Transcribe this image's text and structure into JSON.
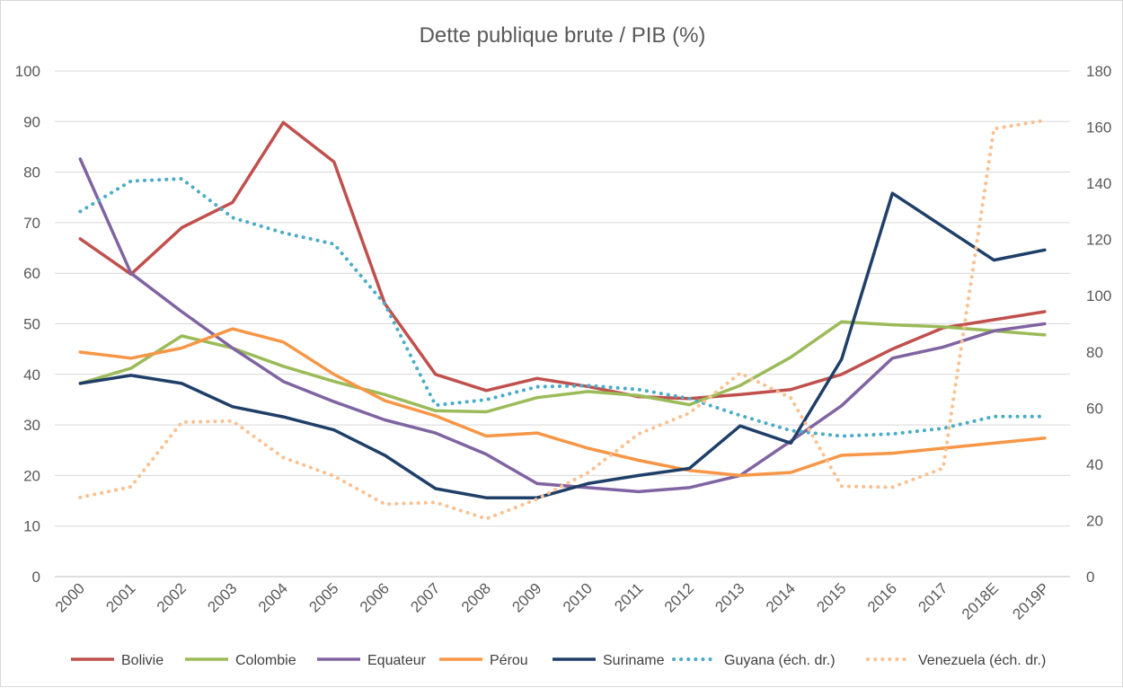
{
  "chart_data": {
    "type": "line",
    "title": "Dette publique brute / PIB (%)",
    "categories": [
      "2000",
      "2001",
      "2002",
      "2003",
      "2004",
      "2005",
      "2006",
      "2007",
      "2008",
      "2009",
      "2010",
      "2011",
      "2012",
      "2013",
      "2014",
      "2015",
      "2016",
      "2017",
      "2018E",
      "2019P"
    ],
    "y_left": {
      "min": 0,
      "max": 100,
      "step": 10,
      "ticks": [
        "0",
        "10",
        "20",
        "30",
        "40",
        "50",
        "60",
        "70",
        "80",
        "90",
        "100"
      ]
    },
    "y_right": {
      "min": 0,
      "max": 180,
      "step": 20,
      "ticks": [
        "0",
        "20",
        "40",
        "60",
        "80",
        "100",
        "120",
        "140",
        "160",
        "180"
      ]
    },
    "grid": true,
    "legend_position": "bottom",
    "series": [
      {
        "name": "Bolivie",
        "axis": "left",
        "style": "solid",
        "color": "#c0504d",
        "values": [
          66.8,
          59.8,
          69.0,
          74.0,
          89.8,
          82.0,
          54.0,
          40.0,
          36.8,
          39.2,
          37.6,
          35.6,
          35.2,
          36.0,
          37.0,
          40.0,
          45.0,
          49.2,
          50.8,
          52.4
        ]
      },
      {
        "name": "Colombie",
        "axis": "left",
        "style": "solid",
        "color": "#9bbb59",
        "values": [
          38.2,
          41.2,
          47.6,
          45.2,
          41.6,
          38.6,
          36.0,
          32.8,
          32.6,
          35.4,
          36.6,
          35.8,
          34.0,
          37.8,
          43.4,
          50.4,
          49.8,
          49.4,
          48.6,
          47.8
        ]
      },
      {
        "name": "Equateur",
        "axis": "left",
        "style": "solid",
        "color": "#8064a2",
        "values": [
          82.6,
          60.0,
          52.4,
          45.2,
          38.6,
          34.6,
          31.0,
          28.4,
          24.2,
          18.4,
          17.6,
          16.8,
          17.6,
          20.0,
          26.8,
          33.8,
          43.2,
          45.4,
          48.6,
          50.0
        ]
      },
      {
        "name": "Pérou",
        "axis": "left",
        "style": "solid",
        "color": "#f79646",
        "values": [
          44.4,
          43.2,
          45.2,
          49.0,
          46.4,
          40.0,
          34.8,
          31.8,
          27.8,
          28.4,
          25.4,
          23.0,
          21.0,
          20.0,
          20.6,
          24.0,
          24.4,
          25.4,
          26.4,
          27.4
        ]
      },
      {
        "name": "Suriname",
        "axis": "left",
        "style": "solid",
        "color": "#1f3f68",
        "values": [
          38.2,
          39.8,
          38.2,
          33.6,
          31.6,
          29.0,
          24.0,
          17.4,
          15.6,
          15.6,
          18.4,
          20.0,
          21.4,
          29.8,
          26.4,
          43.0,
          75.8,
          69.2,
          62.6,
          64.6
        ]
      },
      {
        "name": "Guyana (éch. dr.)",
        "axis": "right",
        "style": "dotted",
        "color": "#4bacc6",
        "values": [
          130.0,
          140.8,
          141.6,
          127.8,
          122.4,
          118.4,
          97.0,
          61.0,
          63.0,
          67.6,
          68.0,
          66.6,
          63.4,
          57.4,
          52.0,
          50.0,
          50.8,
          52.8,
          57.0,
          57.0
        ]
      },
      {
        "name": "Venezuela (éch. dr.)",
        "axis": "right",
        "style": "dotted",
        "color": "#fac090",
        "values": [
          28.2,
          32.0,
          55.0,
          55.4,
          42.4,
          35.8,
          25.8,
          26.4,
          20.6,
          27.6,
          37.0,
          50.8,
          58.2,
          72.4,
          63.6,
          32.2,
          31.8,
          38.6,
          159.4,
          162.4
        ]
      }
    ]
  }
}
